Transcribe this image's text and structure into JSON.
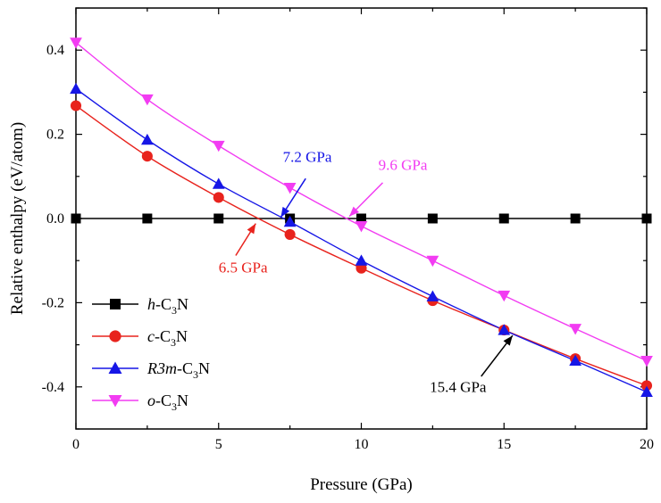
{
  "chart_data": {
    "type": "line",
    "title": "",
    "xlabel": "Pressure (GPa)",
    "ylabel": "Relative enthalpy (eV/atom)",
    "xlim": [
      0,
      20
    ],
    "ylim": [
      -0.5,
      0.5
    ],
    "xticks": [
      0,
      5,
      10,
      15,
      20
    ],
    "xtick_labels": [
      "0",
      "5",
      "10",
      "15",
      "20"
    ],
    "yticks": [
      -0.4,
      -0.2,
      0.0,
      0.2,
      0.4
    ],
    "ytick_labels": [
      "-0.4",
      "-0.2",
      "0.0",
      "0.2",
      "0.4"
    ],
    "grid": false,
    "legend_position": "bottom-left",
    "x": [
      0,
      2.5,
      5,
      7.5,
      10,
      12.5,
      15,
      17.5,
      20
    ],
    "series": [
      {
        "name": "h-C3N",
        "legend_parts": [
          {
            "t": "h",
            "italic": true
          },
          {
            "t": "-C"
          },
          {
            "t": "3",
            "sub": true
          },
          {
            "t": "N"
          }
        ],
        "color": "#000000",
        "marker": "square",
        "values": [
          0,
          0,
          0,
          0,
          0,
          0,
          0,
          0,
          0
        ]
      },
      {
        "name": "c-C3N",
        "legend_parts": [
          {
            "t": "c",
            "italic": true
          },
          {
            "t": "-C"
          },
          {
            "t": "3",
            "sub": true
          },
          {
            "t": "N"
          }
        ],
        "color": "#e8231d",
        "marker": "circle",
        "values": [
          0.268,
          0.148,
          0.05,
          -0.038,
          -0.118,
          -0.195,
          -0.265,
          -0.333,
          -0.397
        ]
      },
      {
        "name": "R3m-C3N",
        "legend_parts": [
          {
            "t": "R3m",
            "italic": true
          },
          {
            "t": "-C"
          },
          {
            "t": "3",
            "sub": true
          },
          {
            "t": "N"
          }
        ],
        "color": "#1616e6",
        "marker": "triangle-up",
        "values": [
          0.308,
          0.187,
          0.082,
          -0.008,
          -0.1,
          -0.185,
          -0.265,
          -0.338,
          -0.412
        ]
      },
      {
        "name": "o-C3N",
        "legend_parts": [
          {
            "t": "o",
            "italic": true
          },
          {
            "t": "-C"
          },
          {
            "t": "3",
            "sub": true
          },
          {
            "t": "N"
          }
        ],
        "color": "#f23cf2",
        "marker": "triangle-down",
        "values": [
          0.418,
          0.283,
          0.173,
          0.073,
          -0.018,
          -0.1,
          -0.183,
          -0.262,
          -0.338
        ]
      }
    ],
    "annotations": [
      {
        "text": "7.2 GPa",
        "color": "#1616e6",
        "text_at": [
          7.25,
          0.135
        ],
        "arrow_from": [
          8.05,
          0.095
        ],
        "arrow_to": [
          7.18,
          0.003
        ]
      },
      {
        "text": "9.6 GPa",
        "color": "#f23cf2",
        "text_at": [
          10.6,
          0.115
        ],
        "arrow_from": [
          10.75,
          0.085
        ],
        "arrow_to": [
          9.58,
          0.005
        ]
      },
      {
        "text": "6.5 GPa",
        "color": "#e8231d",
        "text_at": [
          5.0,
          -0.128
        ],
        "arrow_from": [
          5.6,
          -0.088
        ],
        "arrow_to": [
          6.3,
          -0.012
        ]
      },
      {
        "text": "15.4 GPa",
        "color": "#000000",
        "text_at": [
          12.4,
          -0.412
        ],
        "arrow_from": [
          14.2,
          -0.375
        ],
        "arrow_to": [
          15.3,
          -0.278
        ]
      }
    ]
  }
}
